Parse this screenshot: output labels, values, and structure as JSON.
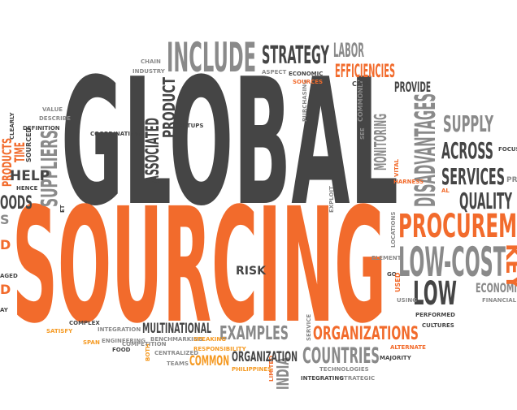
{
  "words": [
    "GLOBAL",
    "SOURCING",
    "INCLUDE",
    "STRATEGY",
    "LABOR",
    "EFFICIENCIES",
    "PROVIDE",
    "SUPPLY",
    "ACROSS",
    "SERVICES",
    "QUALITY",
    "PROCUREM",
    "LOW-COST",
    "LOW",
    "ECONOMI",
    "FINANCIAL",
    "FOCUSED",
    "PRO",
    "DISADVANTAGES",
    "MONITORING",
    "COMMONLY",
    "CALL",
    "SEE",
    "HARNESS",
    "VITAL",
    "AL",
    "KEY",
    "LOCATIONS",
    "ELEMENT",
    "GO",
    "USED",
    "USING",
    "PERFORMED",
    "CULTURES",
    "ORGANIZATIONS",
    "ALTERNATE",
    "MAJORITY",
    "COUNTRIES",
    "TECHNOLOGIES",
    "STRATEGIC",
    "INTEGRATING",
    "INDIA",
    "LIMITED",
    "SERVICE",
    "EXAMPLES",
    "ORGANIZATION",
    "PHILIPPINES",
    "MULTINATIONAL",
    "BENCHMARKING",
    "SPEAKING",
    "RESPONSIBILITY",
    "COMMON",
    "CENTRALIZED",
    "TEAMS",
    "BOTH",
    "COMPETITION",
    "FOOD",
    "ENGINEERING",
    "INTEGRATION",
    "COMPLEX",
    "SATISFY",
    "SPAN",
    "RISK",
    "EXPLOIT",
    "PURCHASING",
    "ECONOMIC",
    "SOURCES",
    "ASPECT",
    "CHAIN",
    "INDUSTRY",
    "PRODUCT",
    "ASSOCIATED",
    "SETUPS",
    "COORDINATING",
    "VALUE",
    "DESCRIBE",
    "DEFINITION",
    "CLEARLY",
    "SUPPLIERS",
    "SOURCED",
    "TIME",
    "PRODUCTS",
    "HELP",
    "HENCE",
    "OODS",
    "ET",
    "D",
    "AGED",
    "D",
    "AY",
    "S"
  ]
}
